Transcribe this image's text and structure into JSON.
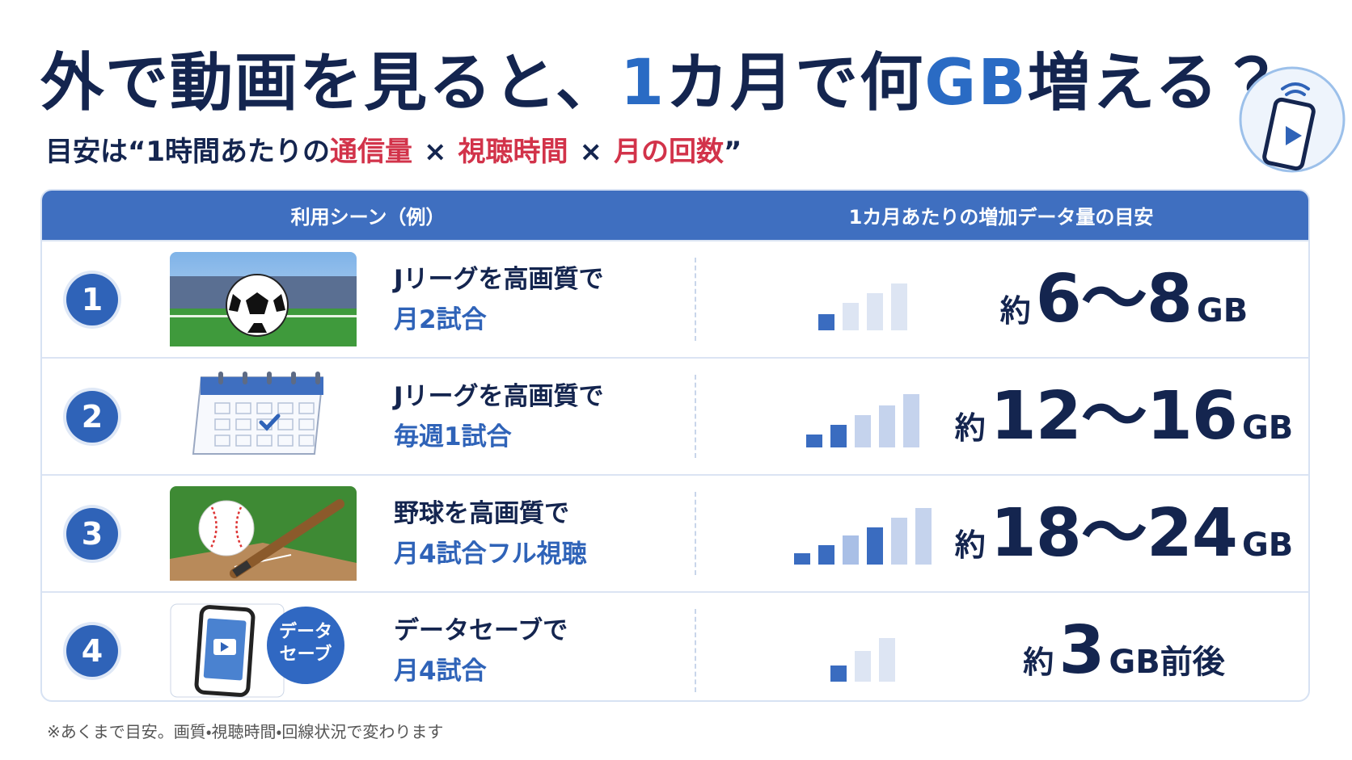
{
  "header": {
    "title": [
      "外で動画を見ると、",
      "1",
      "カ月で何",
      "GB",
      "増える？"
    ],
    "subtitle": [
      "目安は“1時間あたりの",
      "通信量",
      "×",
      "視聴時間",
      "×",
      "月の回数",
      "”"
    ]
  },
  "table": {
    "columns": [
      "利用シーン（例）",
      "1カ月あたりの増加データ量の目安"
    ],
    "rows": [
      {
        "number": "1",
        "scene": [
          "Jリーグを高画質で",
          "月2試合"
        ],
        "estimate": [
          "約",
          "6〜8",
          "GB"
        ]
      },
      {
        "number": "2",
        "scene": [
          "Jリーグを高画質で",
          "毎週1試合"
        ],
        "estimate": [
          "約",
          "12〜16",
          "GB"
        ]
      },
      {
        "number": "3",
        "scene": [
          "野球を高画質で",
          "月4試合フル視聴"
        ],
        "estimate": [
          "約",
          "18〜24",
          "GB"
        ]
      },
      {
        "number": "4",
        "scene": [
          "データセーブで",
          "月4試合"
        ],
        "badge": [
          "データ",
          "セーブ"
        ],
        "estimate": [
          "約",
          "3",
          "GB前後"
        ]
      }
    ]
  },
  "footnote": "※あくまで目安。画質・視聴時間・回線状況で変わります"
}
